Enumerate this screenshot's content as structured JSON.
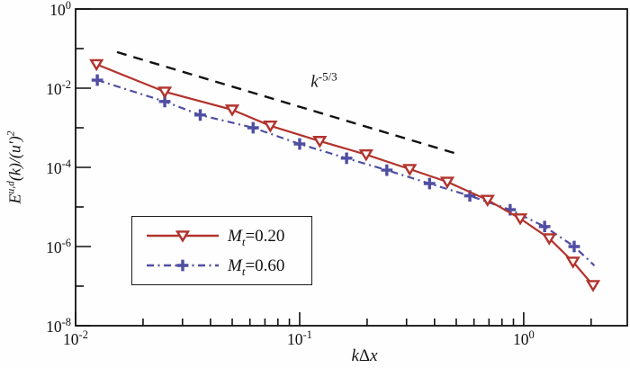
{
  "figure": {
    "background": "#fefefe",
    "axis_color": "#111111",
    "y_title": {
      "e": "E",
      "sup1": "u,d",
      "mid": "(k)/(u′)",
      "sup2": "2"
    },
    "x_title": {
      "k": "k",
      "delta": "Δ",
      "x": "x"
    },
    "annotation": {
      "base": "k",
      "exp": "-5/3"
    },
    "axes": {
      "x": {
        "scale": "log",
        "major_ticks": [
          {
            "value": 0.01,
            "label_base": "10",
            "label_exp": "-2"
          },
          {
            "value": 0.1,
            "label_base": "10",
            "label_exp": "-1"
          },
          {
            "value": 1,
            "label_base": "10",
            "label_exp": "0"
          }
        ],
        "minor_ticks": [
          0.02,
          0.03,
          0.04,
          0.05,
          0.06,
          0.07,
          0.08,
          0.09,
          0.2,
          0.3,
          0.4,
          0.5,
          0.6,
          0.7,
          0.8,
          0.9,
          2
        ]
      },
      "y": {
        "scale": "log",
        "major_ticks": [
          {
            "value": 1,
            "label_base": "10",
            "label_exp": "0"
          },
          {
            "value": 0.01,
            "label_base": "10",
            "label_exp": "-2"
          },
          {
            "value": 0.0001,
            "label_base": "10",
            "label_exp": "-4"
          },
          {
            "value": 1e-06,
            "label_base": "10",
            "label_exp": "-6"
          },
          {
            "value": 1e-08,
            "label_base": "10",
            "label_exp": "-8"
          }
        ],
        "minor_ticks": [
          0.1,
          0.001,
          1e-05,
          1e-07
        ]
      }
    },
    "legend": {
      "position": "lower-left",
      "items": [
        {
          "symbol": "M",
          "subscript": "t",
          "eq": "=0.20"
        },
        {
          "symbol": "M",
          "subscript": "t",
          "eq": "=0.60"
        }
      ]
    }
  },
  "chart_data": {
    "type": "line",
    "title": "",
    "xlabel": "kΔx",
    "ylabel": "E^{u,d}(k)/(u')^2",
    "x_scale": "log",
    "y_scale": "log",
    "xlim": [
      0.01,
      2.9
    ],
    "ylim": [
      1e-08,
      1
    ],
    "grid": false,
    "legend_position": "lower-left",
    "series": [
      {
        "name": "Mt=0.60",
        "color": "#4f4ea2",
        "line": "dashdot",
        "width": 2.2,
        "marker": "plus",
        "x": [
          0.0125,
          0.025,
          0.036,
          0.062,
          0.1,
          0.162,
          0.245,
          0.38,
          0.575,
          0.87,
          1.24,
          1.68
        ],
        "y": [
          0.016,
          0.0046,
          0.0021,
          0.001,
          0.00039,
          0.00017,
          8.5e-05,
          3.9e-05,
          1.9e-05,
          8.5e-06,
          3.2e-06,
          1e-06
        ],
        "line_tail": {
          "x": 2.07,
          "y": 3.3e-07
        }
      },
      {
        "name": "Mt=0.20",
        "color": "#b2332d",
        "line": "solid",
        "width": 2.2,
        "marker": "triangle-down",
        "x": [
          0.0124,
          0.025,
          0.05,
          0.074,
          0.123,
          0.198,
          0.31,
          0.456,
          0.69,
          0.965,
          1.3,
          1.66,
          2.04
        ],
        "y": [
          0.04,
          0.0081,
          0.00285,
          0.00112,
          0.00046,
          0.00021,
          9e-05,
          4.3e-05,
          1.5e-05,
          5.1e-06,
          1.6e-06,
          4.1e-07,
          1.05e-07
        ]
      },
      {
        "name": "k^-5/3 reference",
        "color": "#111111",
        "line": "dashed",
        "width": 2.4,
        "marker": "none",
        "x": [
          0.0153,
          0.49
        ],
        "y": [
          0.0815,
          0.00023
        ]
      }
    ],
    "legend_series_order": [
      1,
      0
    ]
  }
}
